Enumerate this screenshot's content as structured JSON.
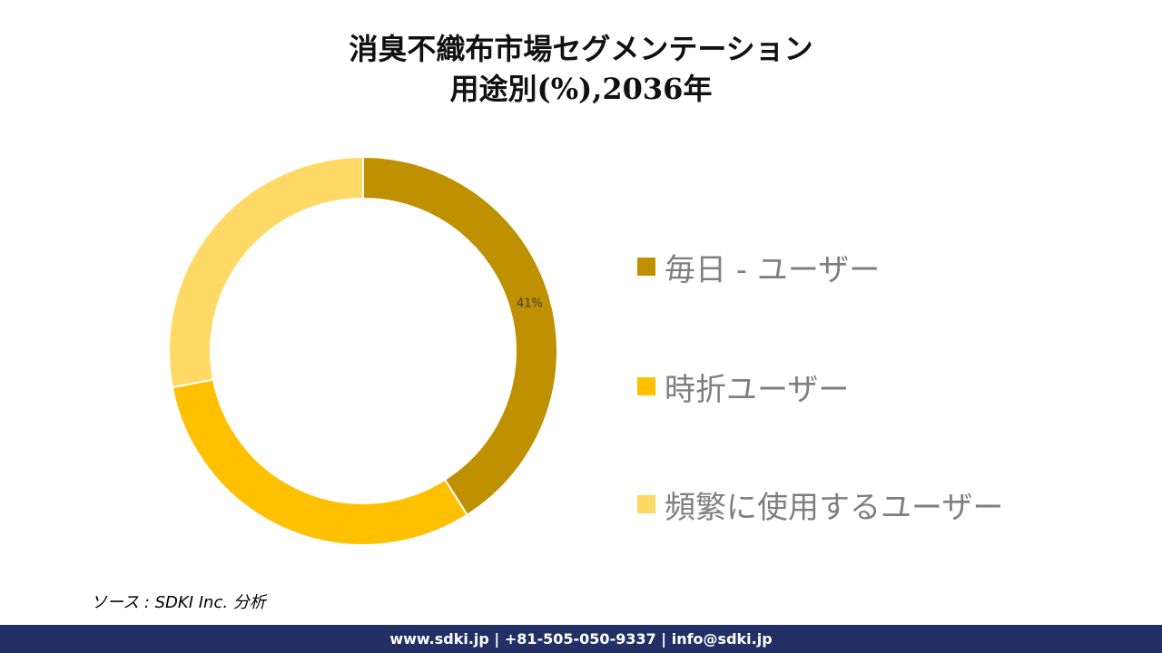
{
  "chart_data": {
    "type": "pie",
    "title_line1": "消臭不織布市場セグメンテーション",
    "title_line2": "用途別(%),2036年",
    "series": [
      {
        "name": "毎日 - ユーザー",
        "value": 41,
        "label": "41%",
        "color": "#bf9000"
      },
      {
        "name": "時折ユーザー",
        "value": 31,
        "label": "",
        "color": "#ffc000"
      },
      {
        "name": "頻繁に使用するユーザー",
        "value": 28,
        "label": "",
        "color": "#ffd966"
      }
    ],
    "legend_position": "right"
  },
  "source": "ソース : SDKI Inc. 分析",
  "footer": "www.sdki.jp | +81-505-050-9337 | info@sdki.jp"
}
